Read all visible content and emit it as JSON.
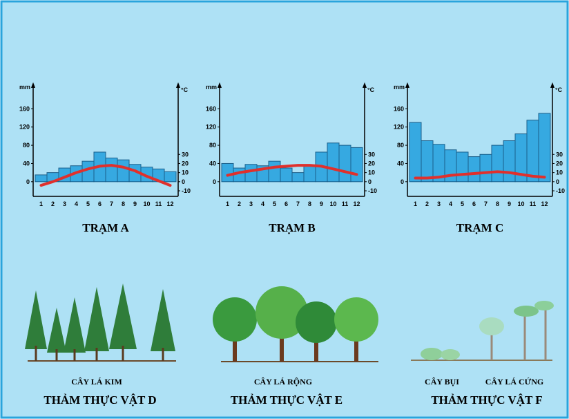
{
  "chart_data": [
    {
      "type": "climate",
      "title": "TRẠM A",
      "y_label": "mm",
      "y2_label": "°C",
      "categories": [
        "1",
        "2",
        "3",
        "4",
        "5",
        "6",
        "7",
        "8",
        "9",
        "10",
        "11",
        "12"
      ],
      "ylim": [
        -20,
        200
      ],
      "yticks": [
        0,
        40,
        80,
        120,
        160
      ],
      "y2lim": [
        -10,
        100
      ],
      "y2ticks": [
        -10,
        0,
        10,
        20,
        30
      ],
      "series": [
        {
          "type": "bar",
          "color": "#36a9e1",
          "values": [
            15,
            20,
            30,
            35,
            45,
            65,
            52,
            48,
            38,
            32,
            28,
            22
          ]
        },
        {
          "type": "line",
          "color": "#e0302c",
          "axis": "y2",
          "values": [
            -4,
            0,
            5,
            10,
            14,
            17,
            18,
            16,
            12,
            6,
            1,
            -4
          ]
        }
      ]
    },
    {
      "type": "climate",
      "title": "TRẠM B",
      "y_label": "mm",
      "y2_label": "°C",
      "categories": [
        "1",
        "2",
        "3",
        "4",
        "5",
        "6",
        "7",
        "8",
        "9",
        "10",
        "11",
        "12"
      ],
      "ylim": [
        -20,
        200
      ],
      "yticks": [
        0,
        40,
        80,
        120,
        160
      ],
      "y2lim": [
        -10,
        100
      ],
      "y2ticks": [
        -10,
        0,
        10,
        20,
        30
      ],
      "series": [
        {
          "type": "bar",
          "color": "#36a9e1",
          "values": [
            40,
            30,
            38,
            35,
            45,
            30,
            20,
            35,
            65,
            85,
            80,
            75
          ]
        },
        {
          "type": "line",
          "color": "#e0302c",
          "axis": "y2",
          "values": [
            7,
            10,
            12,
            14,
            16,
            17,
            18,
            18,
            17,
            14,
            11,
            8
          ]
        }
      ]
    },
    {
      "type": "climate",
      "title": "TRẠM C",
      "y_label": "mm",
      "y2_label": "°C",
      "categories": [
        "1",
        "2",
        "3",
        "4",
        "5",
        "6",
        "7",
        "8",
        "9",
        "10",
        "11",
        "12"
      ],
      "ylim": [
        -20,
        200
      ],
      "yticks": [
        0,
        40,
        80,
        120,
        160
      ],
      "y2lim": [
        -10,
        100
      ],
      "y2ticks": [
        -10,
        0,
        10,
        20,
        30
      ],
      "series": [
        {
          "type": "bar",
          "color": "#36a9e1",
          "values": [
            130,
            90,
            82,
            70,
            65,
            55,
            60,
            80,
            90,
            105,
            135,
            150
          ]
        },
        {
          "type": "line",
          "color": "#e0302c",
          "axis": "y2",
          "values": [
            4,
            4,
            5,
            7,
            8,
            9,
            10,
            11,
            10,
            8,
            6,
            5
          ]
        }
      ]
    }
  ],
  "vegetation": [
    {
      "labels": [
        "CÂY LÁ KIM"
      ],
      "title": "THẢM THỰC VẬT D"
    },
    {
      "labels": [
        "CÂY LÁ RỘNG"
      ],
      "title": "THẢM THỰC VẬT E"
    },
    {
      "labels": [
        "CÂY BỤI",
        "CÂY LÁ CỨNG"
      ],
      "title": "THẢM THỰC VẬT F"
    }
  ]
}
